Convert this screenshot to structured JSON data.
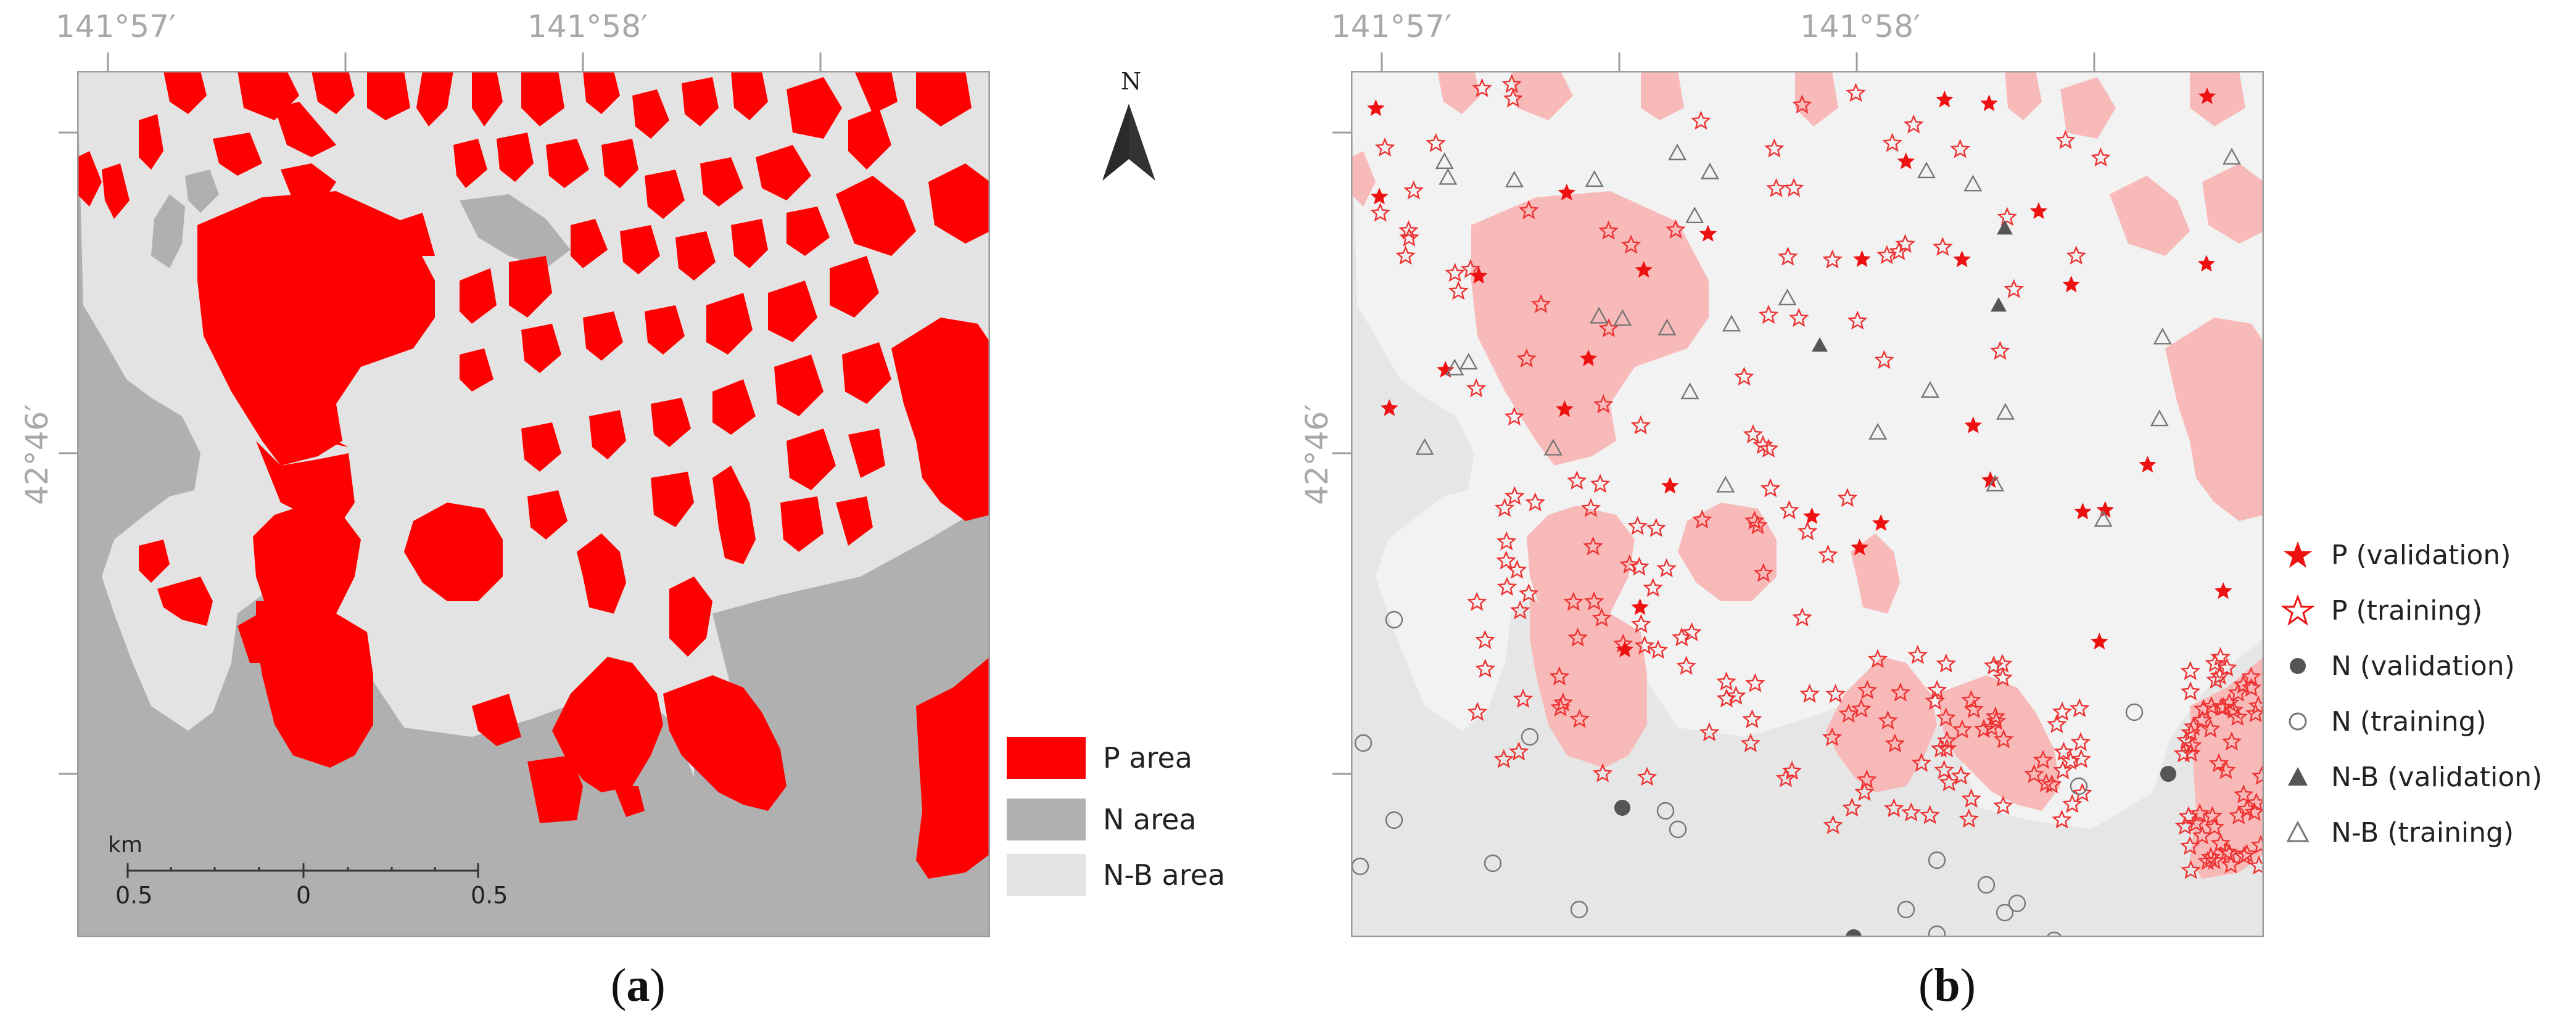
{
  "panel_a": {
    "caption": "a",
    "coords": {
      "lon1": "141°57′",
      "lon2": "141°58′",
      "lat1": "42°46′"
    },
    "north_label": "N",
    "scale": {
      "unit": "km",
      "ticks": [
        "0.5",
        "0",
        "0.5"
      ]
    },
    "legend": [
      {
        "label": "P area",
        "color": "#ff0000"
      },
      {
        "label": "N area",
        "color": "#b0b0b0"
      },
      {
        "label": "N-B area",
        "color": "#e3e3e3"
      }
    ]
  },
  "panel_b": {
    "caption": "b",
    "coords": {
      "lon1": "141°57′",
      "lon2": "141°58′",
      "lat1": "42°46′"
    },
    "legend": [
      {
        "label": "P (validation)",
        "symbol": "filled-star",
        "color": "#ee1111"
      },
      {
        "label": "P (training)",
        "symbol": "outline-star",
        "color": "#ee1111"
      },
      {
        "label": "N (validation)",
        "symbol": "filled-circle",
        "color": "#555555"
      },
      {
        "label": "N (training)",
        "symbol": "outline-circle",
        "color": "#777777"
      },
      {
        "label": "N-B (validation)",
        "symbol": "filled-triangle",
        "color": "#555555"
      },
      {
        "label": "N-B (training)",
        "symbol": "outline-triangle",
        "color": "#777777"
      }
    ]
  },
  "colors": {
    "p_area": "#ff0000",
    "n_area": "#b0b0b0",
    "nb_area": "#e3e3e3",
    "p_area_light": "#f8b9b9",
    "frame": "#9c9c9c"
  }
}
